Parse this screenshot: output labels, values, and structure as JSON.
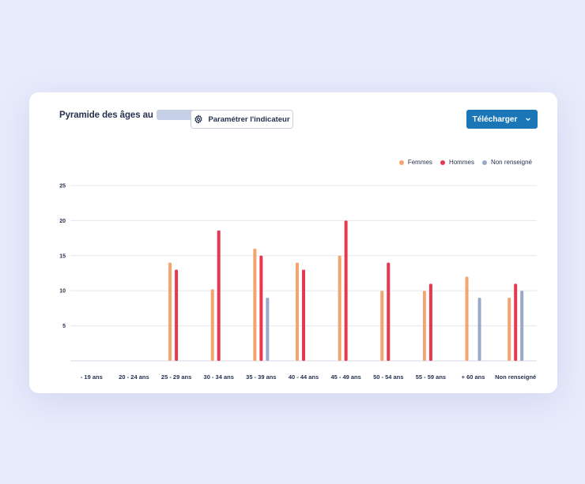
{
  "header": {
    "title": "Pyramide des âges au",
    "param_button_label": "Paramétrer l'indicateur",
    "download_button_label": "Télécharger"
  },
  "colors": {
    "femmes": "#f4a46e",
    "hommes": "#e8384f",
    "non_renseigne": "#9aa9c9",
    "grid": "#e4e7ee",
    "date_placeholder": "#c5d0e6",
    "accent": "#1b76b8"
  },
  "icons": {
    "param": "gear-icon",
    "download_chevron": "chevron-down-icon"
  },
  "chart_data": {
    "type": "bar",
    "categories": [
      "- 19 ans",
      "20 - 24 ans",
      "25 - 29 ans",
      "30 - 34 ans",
      "35 - 39 ans",
      "40 - 44 ans",
      "45 - 49 ans",
      "50 - 54 ans",
      "55 - 59 ans",
      "+ 60 ans",
      "Non renseigné"
    ],
    "series": [
      {
        "name": "Femmes",
        "color": "#f4a46e",
        "values": [
          0,
          0,
          14,
          10.2,
          16,
          14,
          15,
          10,
          10,
          12,
          9
        ]
      },
      {
        "name": "Hommes",
        "color": "#e8384f",
        "values": [
          0,
          0,
          13,
          18.6,
          15,
          13,
          20,
          14,
          11,
          0,
          11
        ]
      },
      {
        "name": "Non renseigné",
        "color": "#9aa9c9",
        "values": [
          0,
          0,
          0,
          0,
          9,
          0,
          0,
          0,
          0,
          9,
          10
        ]
      }
    ],
    "yticks": [
      5,
      10,
      15,
      20,
      25
    ],
    "ylim": [
      0,
      25
    ],
    "grid": true,
    "legend_position": "top-right"
  }
}
